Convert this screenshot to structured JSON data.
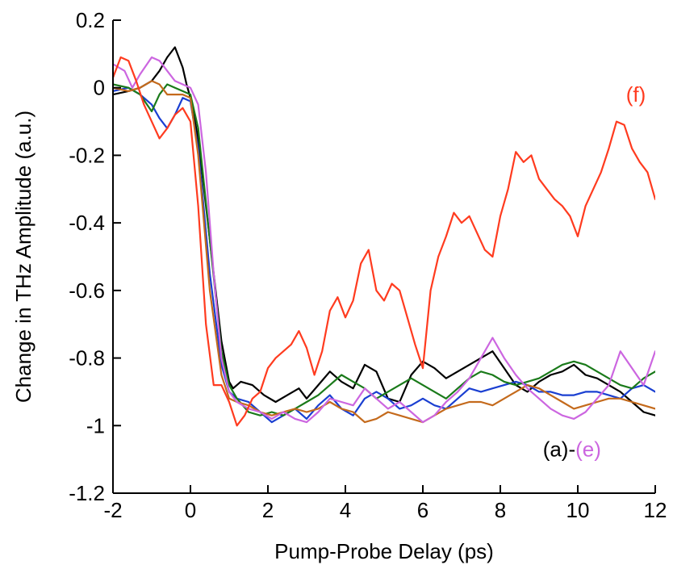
{
  "chart_data": {
    "type": "line",
    "title": "",
    "xlabel": "Pump-Probe Delay (ps)",
    "ylabel": "Change in THz Amplitude (a.u.)",
    "xlim": [
      -2,
      12
    ],
    "ylim": [
      -1.2,
      0.2
    ],
    "xticks": [
      -2,
      0,
      2,
      4,
      6,
      8,
      10,
      12
    ],
    "yticks": [
      0.2,
      0,
      -0.2,
      -0.4,
      -0.6,
      -0.8,
      -1,
      -1.2
    ],
    "xtick_labels": [
      "-2",
      "0",
      "2",
      "4",
      "6",
      "8",
      "10",
      "12"
    ],
    "ytick_labels": [
      "0.2",
      "0",
      "-0.2",
      "-0.4",
      "-0.6",
      "-0.8",
      "-1",
      "-1.2"
    ],
    "grid": false,
    "annotations": {
      "f_label": {
        "text": "(f)",
        "color": "#ff3b1f",
        "x": 11.5,
        "y": -0.02
      },
      "ae_prefix": {
        "text": "(a)-",
        "color": "#000000"
      },
      "ae_suffix": {
        "text": "(e)",
        "color": "#cc66e0"
      },
      "ae_anchor": {
        "x": 9.85,
        "y": -1.07
      }
    },
    "series": [
      {
        "color": "#000000",
        "x": [
          -2,
          -1.6,
          -1.3,
          -1.0,
          -0.8,
          -0.6,
          -0.4,
          -0.2,
          -0.1,
          0,
          0.2,
          0.5,
          0.8,
          1.0,
          1.1,
          1.3,
          1.6,
          1.9,
          2.2,
          2.5,
          2.8,
          3.0,
          3.3,
          3.6,
          3.9,
          4.2,
          4.5,
          4.8,
          5.1,
          5.4,
          5.7,
          6.0,
          6.3,
          6.6,
          6.9,
          7.2,
          7.5,
          7.8,
          8.1,
          8.4,
          8.7,
          9.0,
          9.3,
          9.6,
          9.9,
          10.2,
          10.5,
          10.8,
          11.1,
          11.4,
          11.7,
          12
        ],
        "y": [
          -0.02,
          -0.01,
          0.0,
          0.02,
          0.05,
          0.09,
          0.12,
          0.06,
          0.01,
          -0.03,
          -0.15,
          -0.45,
          -0.75,
          -0.87,
          -0.89,
          -0.87,
          -0.88,
          -0.91,
          -0.93,
          -0.91,
          -0.89,
          -0.92,
          -0.88,
          -0.84,
          -0.87,
          -0.89,
          -0.82,
          -0.84,
          -0.92,
          -0.93,
          -0.85,
          -0.81,
          -0.83,
          -0.86,
          -0.84,
          -0.82,
          -0.8,
          -0.78,
          -0.83,
          -0.88,
          -0.9,
          -0.87,
          -0.85,
          -0.84,
          -0.82,
          -0.85,
          -0.86,
          -0.88,
          -0.9,
          -0.93,
          -0.96,
          -0.97
        ]
      },
      {
        "color": "#1a3fd1",
        "x": [
          -2,
          -1.6,
          -1.3,
          -1.0,
          -0.8,
          -0.6,
          -0.4,
          -0.2,
          0,
          0.2,
          0.5,
          0.8,
          1.0,
          1.2,
          1.5,
          1.8,
          2.1,
          2.4,
          2.7,
          3.0,
          3.3,
          3.6,
          3.9,
          4.2,
          4.5,
          4.8,
          5.1,
          5.4,
          5.7,
          6.0,
          6.3,
          6.6,
          6.9,
          7.2,
          7.5,
          7.8,
          8.1,
          8.4,
          8.7,
          9.0,
          9.3,
          9.6,
          9.9,
          10.2,
          10.5,
          10.8,
          11.1,
          11.4,
          11.7,
          12
        ],
        "y": [
          -0.01,
          0.0,
          -0.02,
          -0.05,
          -0.09,
          -0.12,
          -0.08,
          -0.03,
          -0.04,
          -0.18,
          -0.55,
          -0.82,
          -0.9,
          -0.92,
          -0.93,
          -0.96,
          -0.99,
          -0.97,
          -0.95,
          -0.98,
          -0.94,
          -0.91,
          -0.95,
          -0.97,
          -0.92,
          -0.9,
          -0.92,
          -0.95,
          -0.94,
          -0.92,
          -0.94,
          -0.95,
          -0.92,
          -0.89,
          -0.9,
          -0.89,
          -0.88,
          -0.87,
          -0.88,
          -0.9,
          -0.9,
          -0.91,
          -0.91,
          -0.9,
          -0.9,
          -0.91,
          -0.92,
          -0.89,
          -0.88,
          -0.9
        ]
      },
      {
        "color": "#1a7a1a",
        "x": [
          -2,
          -1.6,
          -1.3,
          -1.0,
          -0.8,
          -0.6,
          -0.4,
          -0.2,
          0,
          0.2,
          0.5,
          0.8,
          1.0,
          1.2,
          1.5,
          1.8,
          2.1,
          2.4,
          2.7,
          3.0,
          3.3,
          3.6,
          3.9,
          4.2,
          4.5,
          4.8,
          5.1,
          5.4,
          5.7,
          6.0,
          6.3,
          6.6,
          6.9,
          7.2,
          7.5,
          7.8,
          8.1,
          8.4,
          8.7,
          9.0,
          9.3,
          9.6,
          9.9,
          10.2,
          10.5,
          10.8,
          11.1,
          11.4,
          11.7,
          12
        ],
        "y": [
          0.01,
          0.0,
          -0.02,
          -0.07,
          -0.02,
          0.01,
          0.0,
          -0.01,
          -0.02,
          -0.12,
          -0.45,
          -0.78,
          -0.88,
          -0.92,
          -0.96,
          -0.97,
          -0.96,
          -0.97,
          -0.95,
          -0.93,
          -0.91,
          -0.88,
          -0.85,
          -0.87,
          -0.89,
          -0.92,
          -0.9,
          -0.88,
          -0.86,
          -0.88,
          -0.9,
          -0.92,
          -0.89,
          -0.86,
          -0.84,
          -0.85,
          -0.87,
          -0.88,
          -0.87,
          -0.86,
          -0.84,
          -0.82,
          -0.81,
          -0.82,
          -0.84,
          -0.86,
          -0.88,
          -0.89,
          -0.86,
          -0.84
        ]
      },
      {
        "color": "#c46a1c",
        "x": [
          -2,
          -1.6,
          -1.3,
          -1.0,
          -0.8,
          -0.6,
          -0.4,
          -0.2,
          0,
          0.2,
          0.5,
          0.8,
          1.0,
          1.2,
          1.5,
          1.8,
          2.1,
          2.4,
          2.7,
          3.0,
          3.3,
          3.6,
          3.9,
          4.2,
          4.5,
          4.8,
          5.1,
          5.4,
          5.7,
          6.0,
          6.3,
          6.6,
          6.9,
          7.2,
          7.5,
          7.8,
          8.1,
          8.4,
          8.7,
          9.0,
          9.3,
          9.6,
          9.9,
          10.2,
          10.5,
          10.8,
          11.1,
          11.4,
          11.7,
          12
        ],
        "y": [
          0.0,
          -0.01,
          0.0,
          0.02,
          0.01,
          -0.02,
          -0.02,
          -0.02,
          -0.03,
          -0.2,
          -0.6,
          -0.85,
          -0.92,
          -0.93,
          -0.94,
          -0.96,
          -0.97,
          -0.96,
          -0.95,
          -0.96,
          -0.95,
          -0.93,
          -0.95,
          -0.96,
          -0.99,
          -0.98,
          -0.96,
          -0.97,
          -0.98,
          -0.99,
          -0.97,
          -0.95,
          -0.94,
          -0.93,
          -0.93,
          -0.94,
          -0.92,
          -0.9,
          -0.88,
          -0.89,
          -0.91,
          -0.93,
          -0.95,
          -0.94,
          -0.93,
          -0.92,
          -0.92,
          -0.93,
          -0.94,
          -0.95
        ]
      },
      {
        "color": "#cc66e0",
        "x": [
          -2,
          -1.7,
          -1.5,
          -1.3,
          -1.0,
          -0.8,
          -0.6,
          -0.4,
          -0.2,
          0,
          0.2,
          0.4,
          0.6,
          0.8,
          1.0,
          1.2,
          1.5,
          1.8,
          2.1,
          2.4,
          2.7,
          3.0,
          3.3,
          3.6,
          3.9,
          4.2,
          4.5,
          4.8,
          5.1,
          5.4,
          5.7,
          6.0,
          6.3,
          6.6,
          6.9,
          7.2,
          7.5,
          7.8,
          8.1,
          8.4,
          8.7,
          9.0,
          9.3,
          9.6,
          9.9,
          10.2,
          10.5,
          10.8,
          11.1,
          11.4,
          11.7,
          12
        ],
        "y": [
          0.07,
          0.05,
          0.0,
          0.04,
          0.09,
          0.08,
          0.05,
          0.02,
          0.01,
          0.0,
          -0.05,
          -0.25,
          -0.55,
          -0.8,
          -0.9,
          -0.93,
          -0.95,
          -0.96,
          -0.98,
          -0.96,
          -0.98,
          -0.99,
          -0.96,
          -0.92,
          -0.93,
          -0.94,
          -0.89,
          -0.92,
          -0.95,
          -0.93,
          -0.96,
          -0.99,
          -0.97,
          -0.93,
          -0.9,
          -0.86,
          -0.8,
          -0.74,
          -0.8,
          -0.85,
          -0.89,
          -0.92,
          -0.95,
          -0.97,
          -0.98,
          -0.96,
          -0.92,
          -0.88,
          -0.78,
          -0.83,
          -0.88,
          -0.78
        ]
      },
      {
        "color": "#ff3b1f",
        "x": [
          -2,
          -1.8,
          -1.6,
          -1.4,
          -1.2,
          -1.0,
          -0.8,
          -0.6,
          -0.4,
          -0.2,
          0,
          0.2,
          0.4,
          0.6,
          0.8,
          1.0,
          1.2,
          1.4,
          1.6,
          1.8,
          2.0,
          2.2,
          2.4,
          2.6,
          2.8,
          3.0,
          3.2,
          3.4,
          3.6,
          3.8,
          4.0,
          4.2,
          4.4,
          4.6,
          4.8,
          5.0,
          5.2,
          5.4,
          5.6,
          5.8,
          6.0,
          6.2,
          6.4,
          6.6,
          6.8,
          7.0,
          7.2,
          7.4,
          7.6,
          7.8,
          8.0,
          8.2,
          8.4,
          8.6,
          8.8,
          9.0,
          9.2,
          9.4,
          9.6,
          9.8,
          10.0,
          10.2,
          10.4,
          10.6,
          10.8,
          11.0,
          11.2,
          11.4,
          11.6,
          11.8,
          12
        ],
        "y": [
          0.03,
          0.09,
          0.08,
          0.02,
          -0.05,
          -0.1,
          -0.15,
          -0.12,
          -0.08,
          -0.06,
          -0.1,
          -0.35,
          -0.7,
          -0.88,
          -0.88,
          -0.93,
          -1.0,
          -0.97,
          -0.92,
          -0.9,
          -0.83,
          -0.8,
          -0.78,
          -0.76,
          -0.72,
          -0.77,
          -0.85,
          -0.78,
          -0.66,
          -0.62,
          -0.68,
          -0.63,
          -0.52,
          -0.48,
          -0.6,
          -0.63,
          -0.58,
          -0.6,
          -0.68,
          -0.76,
          -0.83,
          -0.6,
          -0.5,
          -0.44,
          -0.37,
          -0.4,
          -0.38,
          -0.43,
          -0.48,
          -0.5,
          -0.38,
          -0.3,
          -0.19,
          -0.22,
          -0.2,
          -0.27,
          -0.3,
          -0.33,
          -0.35,
          -0.38,
          -0.44,
          -0.35,
          -0.3,
          -0.25,
          -0.18,
          -0.1,
          -0.11,
          -0.18,
          -0.22,
          -0.25,
          -0.33
        ]
      }
    ]
  }
}
